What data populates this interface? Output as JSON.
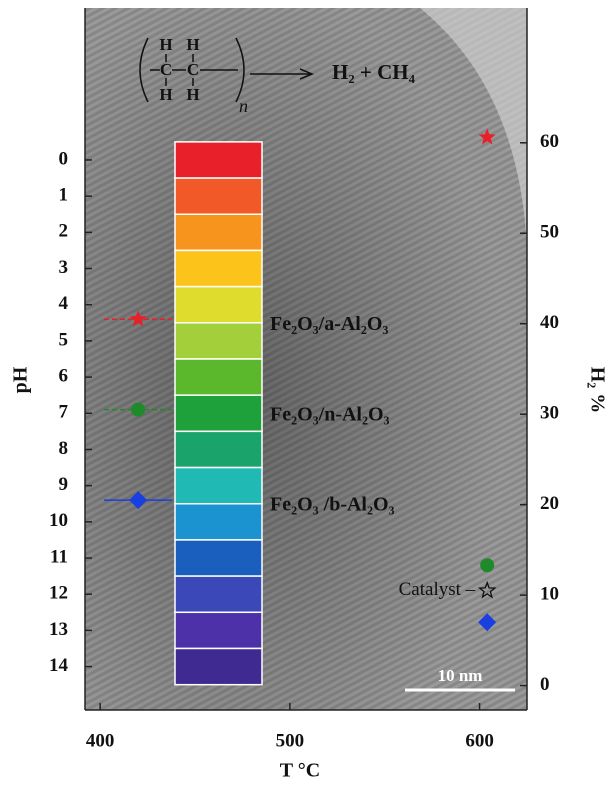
{
  "chart_data": {
    "type": "scatter",
    "xlabel": "T  °C",
    "ylabel": "pH",
    "y2label": "H₂ %",
    "xlim": [
      392,
      625
    ],
    "xticks": [
      400,
      500,
      600
    ],
    "ylim": [
      15.2,
      -4.2
    ],
    "yticks": [
      0,
      1,
      2,
      3,
      4,
      5,
      6,
      7,
      8,
      9,
      10,
      11,
      12,
      13,
      14
    ],
    "y2lim": [
      -2.7,
      74.9
    ],
    "y2ticks": [
      0,
      10,
      20,
      30,
      40,
      50,
      60
    ],
    "colorbar": [
      "#e8202a",
      "#f15a28",
      "#f7941d",
      "#fcc31a",
      "#e0dc2e",
      "#a3cf3a",
      "#5bb82d",
      "#1ea13a",
      "#1aa36a",
      "#21b9b4",
      "#1a93d0",
      "#1a5fbd",
      "#3a48b8",
      "#4c31a8",
      "#3e2a90"
    ],
    "series": [
      {
        "name": "Fe₂O₃/a-Al₂O₃",
        "color": "#e8202a",
        "marker": "star",
        "x": [
          420
        ],
        "values": [
          4.4
        ],
        "xerr": [
          18
        ],
        "dash": true
      },
      {
        "name": "Fe₂O₃/n-Al₂O₃",
        "color": "#1e8a2a",
        "marker": "circle",
        "x": [
          420
        ],
        "values": [
          6.9
        ],
        "xerr": [
          18
        ],
        "dash": true
      },
      {
        "name": "Fe₂O₃ /b-Al₂O₃",
        "color": "#1a3fe0",
        "marker": "diamond",
        "x": [
          420
        ],
        "values": [
          9.4
        ],
        "xerr": [
          18
        ],
        "dash": false
      }
    ],
    "y2_series": {
      "axis": "y2",
      "x": [
        604,
        604,
        604,
        604
      ],
      "values": [
        60.6,
        13.3,
        7.0,
        10.5
      ],
      "markers": [
        "star",
        "circle",
        "diamond",
        "open-star"
      ],
      "colors": [
        "#e8202a",
        "#1e8a2a",
        "#1a3fe0",
        "#111111"
      ]
    },
    "catalyst_label": "Catalyst –",
    "scale_bar": "10 nm",
    "scheme": {
      "atoms": [
        "H",
        "H",
        "C",
        "C",
        "H",
        "H"
      ],
      "subscript": "n",
      "products": "H₂ + CH₄"
    }
  }
}
